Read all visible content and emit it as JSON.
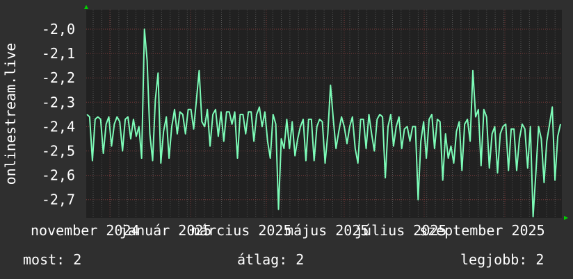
{
  "chart_data": {
    "type": "line",
    "ylabel": "onlinestream.live",
    "ylim": [
      -2.775,
      -1.92
    ],
    "y_ticks": [
      "-2,0",
      "-2,1",
      "-2,2",
      "-2,3",
      "-2,4",
      "-2,5",
      "-2,6",
      "-2,7"
    ],
    "y_tick_values": [
      -2.0,
      -2.1,
      -2.2,
      -2.3,
      -2.4,
      -2.5,
      -2.6,
      -2.7
    ],
    "x_ticks": [
      "november 2024",
      "január 2025",
      "március 2025",
      "május 2025",
      "július 2025",
      "szeptember 2025"
    ],
    "grid": true,
    "colors": {
      "line": "#7dfcb8",
      "background": "#2f2f2f",
      "plot": "#212121",
      "grid_major": "#7a3b3b",
      "grid_minor": "#555555",
      "arrow": "#00d000"
    },
    "series": [
      {
        "values": [
          -2.35,
          -2.36,
          -2.54,
          -2.37,
          -2.36,
          -2.37,
          -2.51,
          -2.39,
          -2.36,
          -2.48,
          -2.39,
          -2.36,
          -2.38,
          -2.5,
          -2.37,
          -2.36,
          -2.45,
          -2.37,
          -2.44,
          -2.4,
          -2.53,
          -2.0,
          -2.13,
          -2.43,
          -2.54,
          -2.29,
          -2.18,
          -2.55,
          -2.42,
          -2.36,
          -2.53,
          -2.4,
          -2.33,
          -2.43,
          -2.34,
          -2.35,
          -2.43,
          -2.33,
          -2.33,
          -2.41,
          -2.29,
          -2.17,
          -2.38,
          -2.4,
          -2.33,
          -2.48,
          -2.35,
          -2.33,
          -2.44,
          -2.34,
          -2.46,
          -2.34,
          -2.34,
          -2.39,
          -2.34,
          -2.53,
          -2.35,
          -2.35,
          -2.43,
          -2.34,
          -2.34,
          -2.46,
          -2.35,
          -2.32,
          -2.4,
          -2.34,
          -2.46,
          -2.53,
          -2.35,
          -2.39,
          -2.74,
          -2.45,
          -2.49,
          -2.37,
          -2.49,
          -2.38,
          -2.52,
          -2.45,
          -2.4,
          -2.37,
          -2.54,
          -2.37,
          -2.37,
          -2.54,
          -2.4,
          -2.37,
          -2.38,
          -2.55,
          -2.43,
          -2.23,
          -2.37,
          -2.49,
          -2.42,
          -2.36,
          -2.4,
          -2.47,
          -2.4,
          -2.36,
          -2.49,
          -2.55,
          -2.37,
          -2.37,
          -2.49,
          -2.35,
          -2.43,
          -2.5,
          -2.37,
          -2.35,
          -2.36,
          -2.61,
          -2.4,
          -2.35,
          -2.48,
          -2.4,
          -2.36,
          -2.49,
          -2.41,
          -2.4,
          -2.46,
          -2.4,
          -2.4,
          -2.7,
          -2.46,
          -2.38,
          -2.53,
          -2.37,
          -2.35,
          -2.49,
          -2.37,
          -2.38,
          -2.62,
          -2.43,
          -2.53,
          -2.48,
          -2.55,
          -2.42,
          -2.38,
          -2.58,
          -2.39,
          -2.37,
          -2.46,
          -2.17,
          -2.36,
          -2.33,
          -2.56,
          -2.33,
          -2.36,
          -2.57,
          -2.43,
          -2.4,
          -2.59,
          -2.43,
          -2.4,
          -2.39,
          -2.58,
          -2.41,
          -2.41,
          -2.58,
          -2.45,
          -2.39,
          -2.41,
          -2.57,
          -2.4,
          -2.77,
          -2.59,
          -2.4,
          -2.45,
          -2.63,
          -2.46,
          -2.39,
          -2.32,
          -2.62,
          -2.44,
          -2.39
        ]
      }
    ]
  },
  "legend": {
    "current": "most: 2",
    "average": "átlag: 2",
    "max": "legjobb: 2"
  }
}
